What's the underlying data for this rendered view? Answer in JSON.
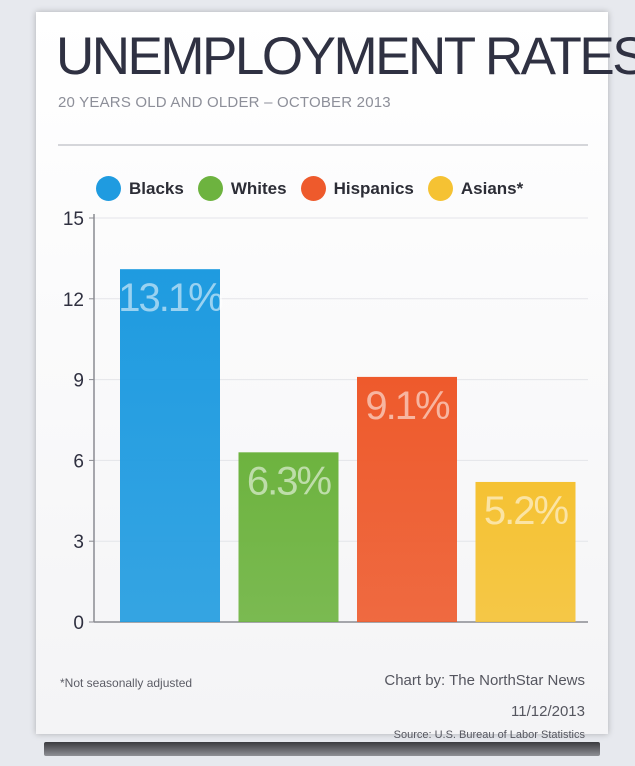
{
  "header": {
    "title": "UNEMPLOYMENT RATES",
    "subtitle": "20 YEARS OLD AND OLDER – OCTOBER 2013"
  },
  "footer": {
    "footnote": "*Not seasonally adjusted",
    "credit": "Chart by: The NorthStar News",
    "date": "11/12/2013",
    "source": "Source: U.S. Bureau of Labor Statistics"
  },
  "chart_data": {
    "type": "bar",
    "title": "UNEMPLOYMENT RATES",
    "subtitle": "20 YEARS OLD AND OLDER – OCTOBER 2013",
    "categories": [
      "Blacks",
      "Whites",
      "Hispanics",
      "Asians*"
    ],
    "values": [
      13.1,
      6.3,
      9.1,
      5.2
    ],
    "data_labels": [
      "13.1%",
      "6.3%",
      "9.1%",
      "5.2%"
    ],
    "colors": [
      "#1f9be0",
      "#6db33f",
      "#ee5a2c",
      "#f5c233"
    ],
    "yticks": [
      0,
      3,
      6,
      9,
      12,
      15
    ],
    "ylim": [
      0,
      15
    ],
    "xlabel": "",
    "ylabel": "",
    "grid": true,
    "legend": {
      "position": "top",
      "entries": [
        "Blacks",
        "Whites",
        "Hispanics",
        "Asians*"
      ]
    }
  }
}
